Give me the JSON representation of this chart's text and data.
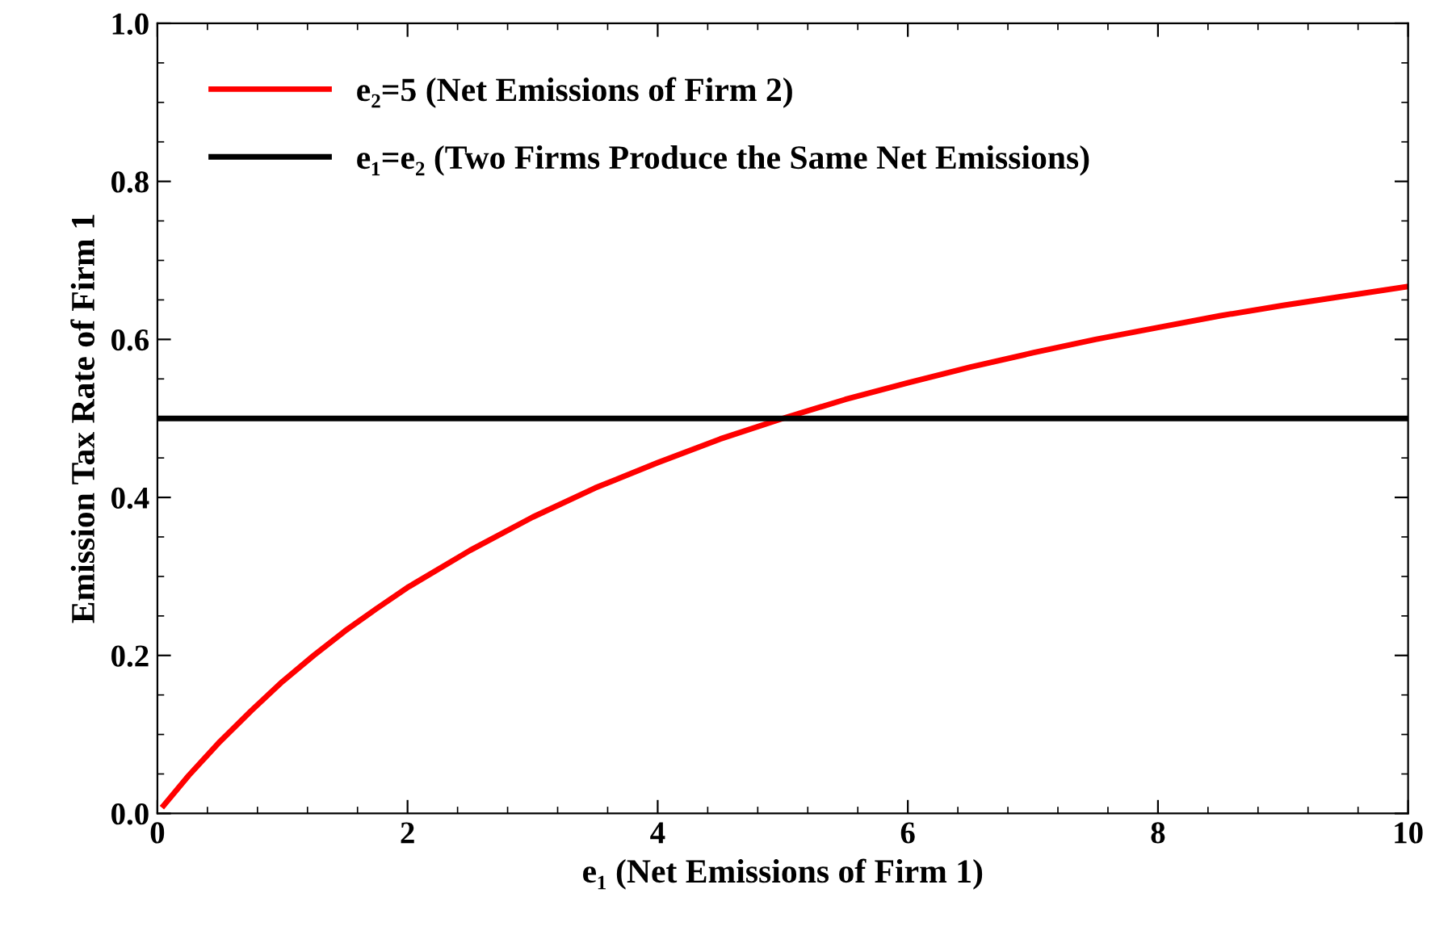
{
  "chart_data": {
    "type": "line",
    "xlabel": "e₁ (Net Emissions of Firm 1)",
    "ylabel": "Emission Tax Rate of Firm 1",
    "series": [
      {
        "name": "e₂=5 (Net Emissions of Firm 2)",
        "color": "#ff0000",
        "x": [
          0.05,
          0.25,
          0.5,
          0.75,
          1,
          1.25,
          1.5,
          1.75,
          2,
          2.5,
          3,
          3.5,
          4,
          4.5,
          5,
          5.5,
          6,
          6.5,
          7,
          7.5,
          8,
          8.5,
          9,
          9.5,
          10
        ],
        "values": [
          0.01,
          0.048,
          0.091,
          0.13,
          0.167,
          0.2,
          0.231,
          0.259,
          0.286,
          0.333,
          0.375,
          0.412,
          0.444,
          0.474,
          0.5,
          0.524,
          0.545,
          0.565,
          0.583,
          0.6,
          0.615,
          0.63,
          0.643,
          0.655,
          0.667
        ]
      },
      {
        "name": "e₁=e₂ (Two Firms Produce the Same Net Emissions)",
        "color": "#000000",
        "x": [
          0,
          10
        ],
        "values": [
          0.5,
          0.5
        ]
      }
    ],
    "xlim": [
      0,
      10
    ],
    "ylim": [
      0,
      1
    ],
    "xticks": [
      0,
      2,
      4,
      6,
      8,
      10
    ],
    "yticks": [
      {
        "value": 0,
        "label": "0.0"
      },
      {
        "value": 0.2,
        "label": "0.2"
      },
      {
        "value": 0.4,
        "label": "0.4"
      },
      {
        "value": 0.6,
        "label": "0.6"
      },
      {
        "value": 0.8,
        "label": "0.8"
      },
      {
        "value": 1,
        "label": "1.0"
      }
    ],
    "legend": "top left",
    "grid": false,
    "marker": "none",
    "line_style": "solid"
  }
}
